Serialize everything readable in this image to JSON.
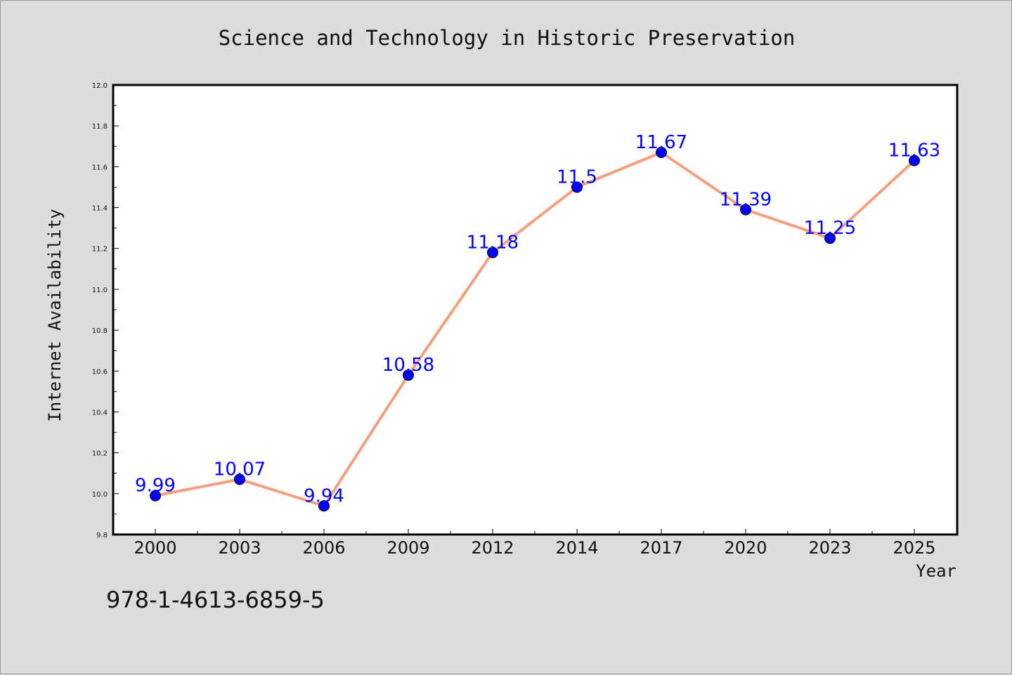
{
  "chart_data": {
    "type": "line",
    "title": "Science and Technology in Historic Preservation",
    "xlabel": "Year",
    "ylabel": "Internet Availability",
    "categories": [
      "2000",
      "2003",
      "2006",
      "2009",
      "2012",
      "2014",
      "2017",
      "2020",
      "2023",
      "2025"
    ],
    "values": [
      9.99,
      10.07,
      9.94,
      10.58,
      11.18,
      11.5,
      11.67,
      11.39,
      11.25,
      11.63
    ],
    "data_labels": [
      "9.99",
      "10.07",
      "9.94",
      "10.58",
      "11.18",
      "11.5",
      "11.67",
      "11.39",
      "11.25",
      "11.63"
    ],
    "ylim": [
      9.8,
      12.0
    ],
    "yticks": [
      "9.8",
      "10.0",
      "10.2",
      "10.4",
      "10.6",
      "10.8",
      "11.0",
      "11.2",
      "11.4",
      "11.6",
      "11.8",
      "12.0"
    ],
    "grid": false,
    "legend": "none",
    "line_color": "#f4a07e",
    "marker_color": "#0000ff",
    "label_color": "#0000ff"
  },
  "footer": {
    "isbn": "978-1-4613-6859-5"
  }
}
